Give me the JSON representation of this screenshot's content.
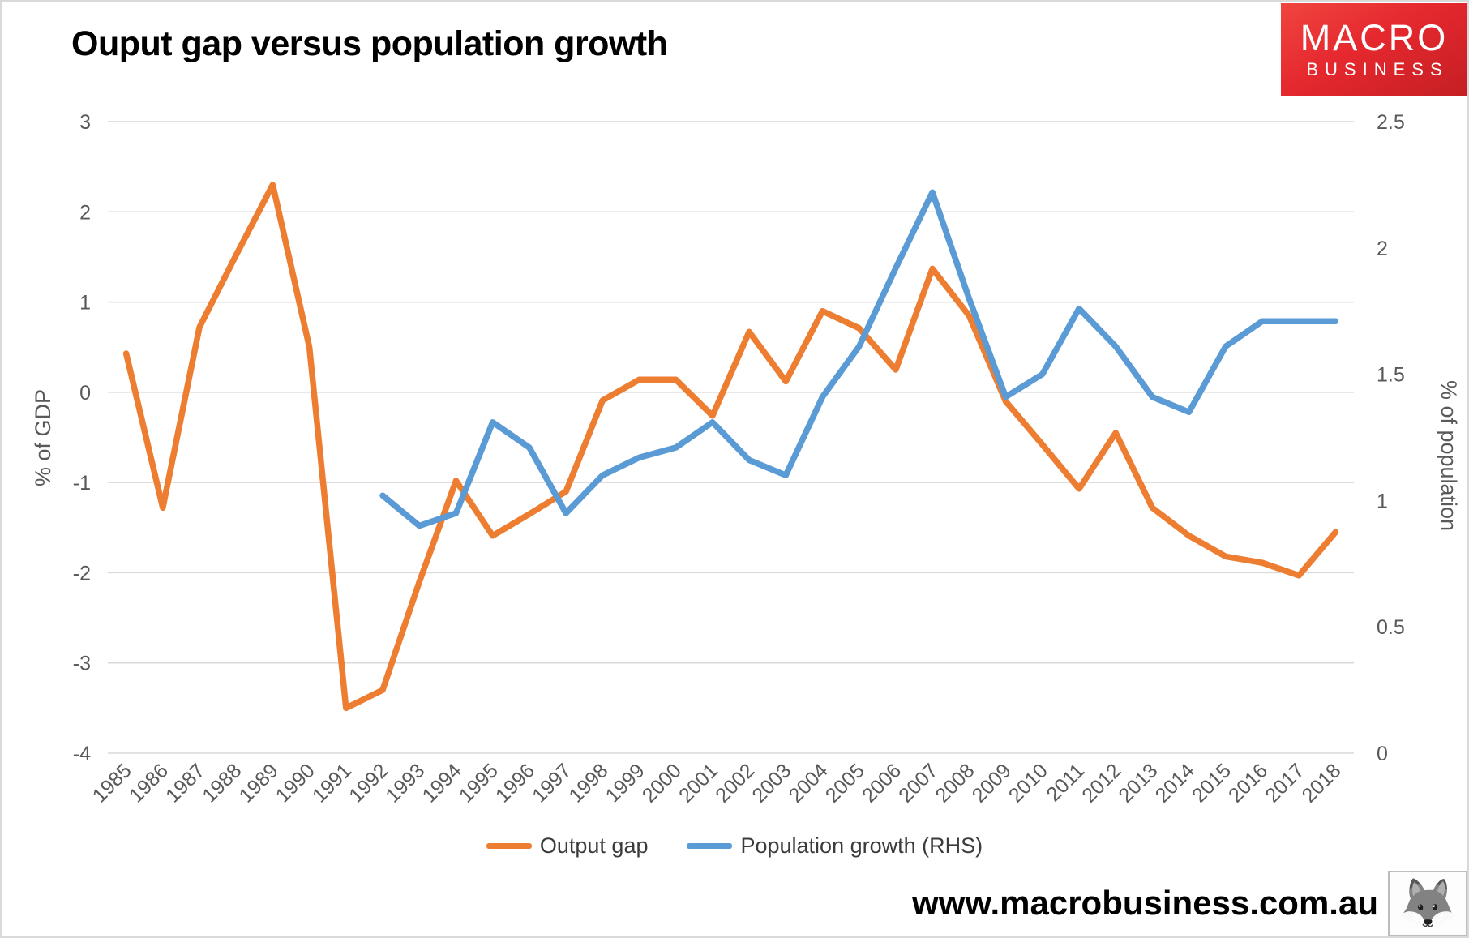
{
  "title": "Ouput gap versus population growth",
  "logo": {
    "line1": "MACRO",
    "line2": "BUSINESS"
  },
  "footer": {
    "website": "www.macrobusiness.com.au",
    "corner_image": "fox-sketch"
  },
  "legend": [
    {
      "label": "Output gap",
      "color": "#ED7D31"
    },
    {
      "label": "Population growth (RHS)",
      "color": "#5B9BD5"
    }
  ],
  "chart_data": {
    "type": "line",
    "title": "Ouput gap versus population growth",
    "categories": [
      "1985",
      "1986",
      "1987",
      "1988",
      "1989",
      "1990",
      "1991",
      "1992",
      "1993",
      "1994",
      "1995",
      "1996",
      "1997",
      "1998",
      "1999",
      "2000",
      "2001",
      "2002",
      "2003",
      "2004",
      "2005",
      "2006",
      "2007",
      "2008",
      "2009",
      "2010",
      "2011",
      "2012",
      "2013",
      "2014",
      "2015",
      "2016",
      "2017",
      "2018"
    ],
    "series": [
      {
        "name": "Output gap",
        "axis": "left",
        "color": "#ED7D31",
        "values": [
          0.43,
          -1.28,
          0.72,
          1.52,
          2.3,
          0.5,
          -3.5,
          -3.3,
          -2.1,
          -0.98,
          -1.59,
          -1.35,
          -1.1,
          -0.09,
          0.14,
          0.14,
          -0.26,
          0.67,
          0.12,
          0.9,
          0.71,
          0.25,
          1.37,
          0.85,
          -0.1,
          -0.58,
          -1.07,
          -0.45,
          -1.28,
          -1.59,
          -1.82,
          -1.89,
          -2.03,
          -1.55
        ]
      },
      {
        "name": "Population growth (RHS)",
        "axis": "right",
        "color": "#5B9BD5",
        "values": [
          null,
          null,
          null,
          null,
          null,
          null,
          null,
          1.02,
          0.9,
          0.95,
          1.31,
          1.21,
          0.95,
          1.1,
          1.17,
          1.21,
          1.31,
          1.16,
          1.1,
          1.41,
          1.61,
          1.92,
          2.22,
          1.8,
          1.41,
          1.5,
          1.76,
          1.61,
          1.41,
          1.35,
          1.61,
          1.71,
          1.71,
          1.71
        ]
      }
    ],
    "ylabel_left": "% of GDP",
    "ylabel_right": "% of population",
    "ylim_left": [
      -4,
      3
    ],
    "ylim_right": [
      0,
      2.5
    ],
    "yticks_left": [
      "3",
      "2",
      "1",
      "0",
      "-1",
      "-2",
      "-3",
      "-4"
    ],
    "yticks_right": [
      "2.5",
      "2",
      "1.5",
      "1",
      "0.5",
      "0"
    ],
    "grid": true,
    "legend_position": "bottom",
    "colors": {
      "grid": "#D9D9D9",
      "axis_text": "#595959"
    }
  }
}
